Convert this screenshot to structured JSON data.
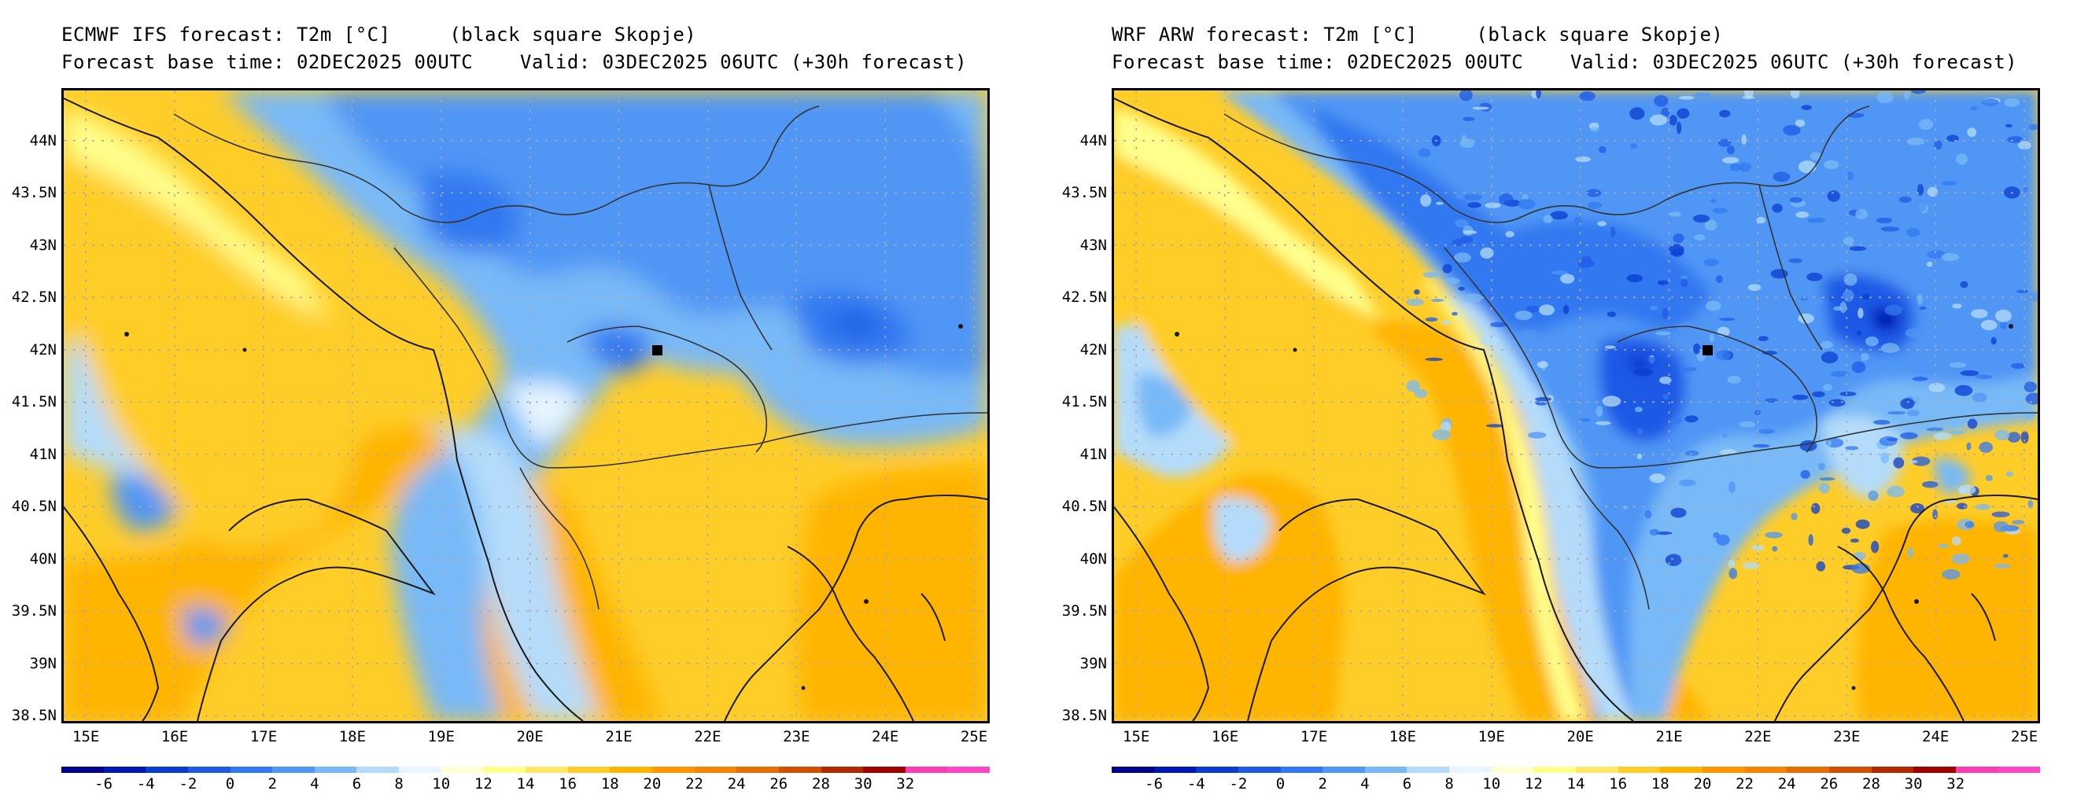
{
  "panels": [
    {
      "id": "ecmwf",
      "title_line1": "ECMWF IFS forecast: T2m [°C]     (black square Skopje)",
      "title_line2": "Forecast base time: 02DEC2025 00UTC    Valid: 03DEC2025 06UTC (+30h forecast)"
    },
    {
      "id": "wrf",
      "title_line1": "WRF ARW forecast: T2m [°C]     (black square Skopje)",
      "title_line2": "Forecast base time: 02DEC2025 00UTC    Valid: 03DEC2025 06UTC (+30h forecast)"
    }
  ],
  "map": {
    "lat_labels": [
      "44N",
      "43.5N",
      "43N",
      "42.5N",
      "42N",
      "41.5N",
      "41N",
      "40.5N",
      "40N",
      "39.5N",
      "39N",
      "38.5N"
    ],
    "lat_values": [
      44,
      43.5,
      43,
      42.5,
      42,
      41.5,
      41,
      40.5,
      40,
      39.5,
      39,
      38.5
    ],
    "lon_labels": [
      "15E",
      "16E",
      "17E",
      "18E",
      "19E",
      "20E",
      "21E",
      "22E",
      "23E",
      "24E",
      "25E"
    ],
    "lon_values": [
      15,
      16,
      17,
      18,
      19,
      20,
      21,
      22,
      23,
      24,
      25
    ],
    "lat_range": [
      38.45,
      44.48
    ],
    "lon_range": [
      14.75,
      25.15
    ],
    "marker_city": "Skopje",
    "marker_lat": 42.0,
    "marker_lon": 21.43
  },
  "colorbar": {
    "labels": [
      "-6",
      "-4",
      "-2",
      "0",
      "2",
      "4",
      "6",
      "8",
      "10",
      "12",
      "14",
      "16",
      "18",
      "20",
      "22",
      "24",
      "26",
      "28",
      "30",
      "32"
    ],
    "colors": [
      "#00008c",
      "#0018b4",
      "#0a3cd2",
      "#1e5ae6",
      "#3278f0",
      "#5096f5",
      "#78b9f7",
      "#b4dcfa",
      "#e6f5ff",
      "#ffffd2",
      "#ffff8c",
      "#ffe664",
      "#ffcd28",
      "#ffb400",
      "#ff9600",
      "#f58200",
      "#e66e00",
      "#d25000",
      "#b42800",
      "#a00000",
      "#fa3cb4",
      "#ff46c8"
    ]
  },
  "colors": {
    "border": "#000000",
    "grid": "#aaaaaa",
    "coast": "#1a1a1a",
    "sea_warm": "#ffcd28",
    "land_cold": "#3278f0"
  }
}
